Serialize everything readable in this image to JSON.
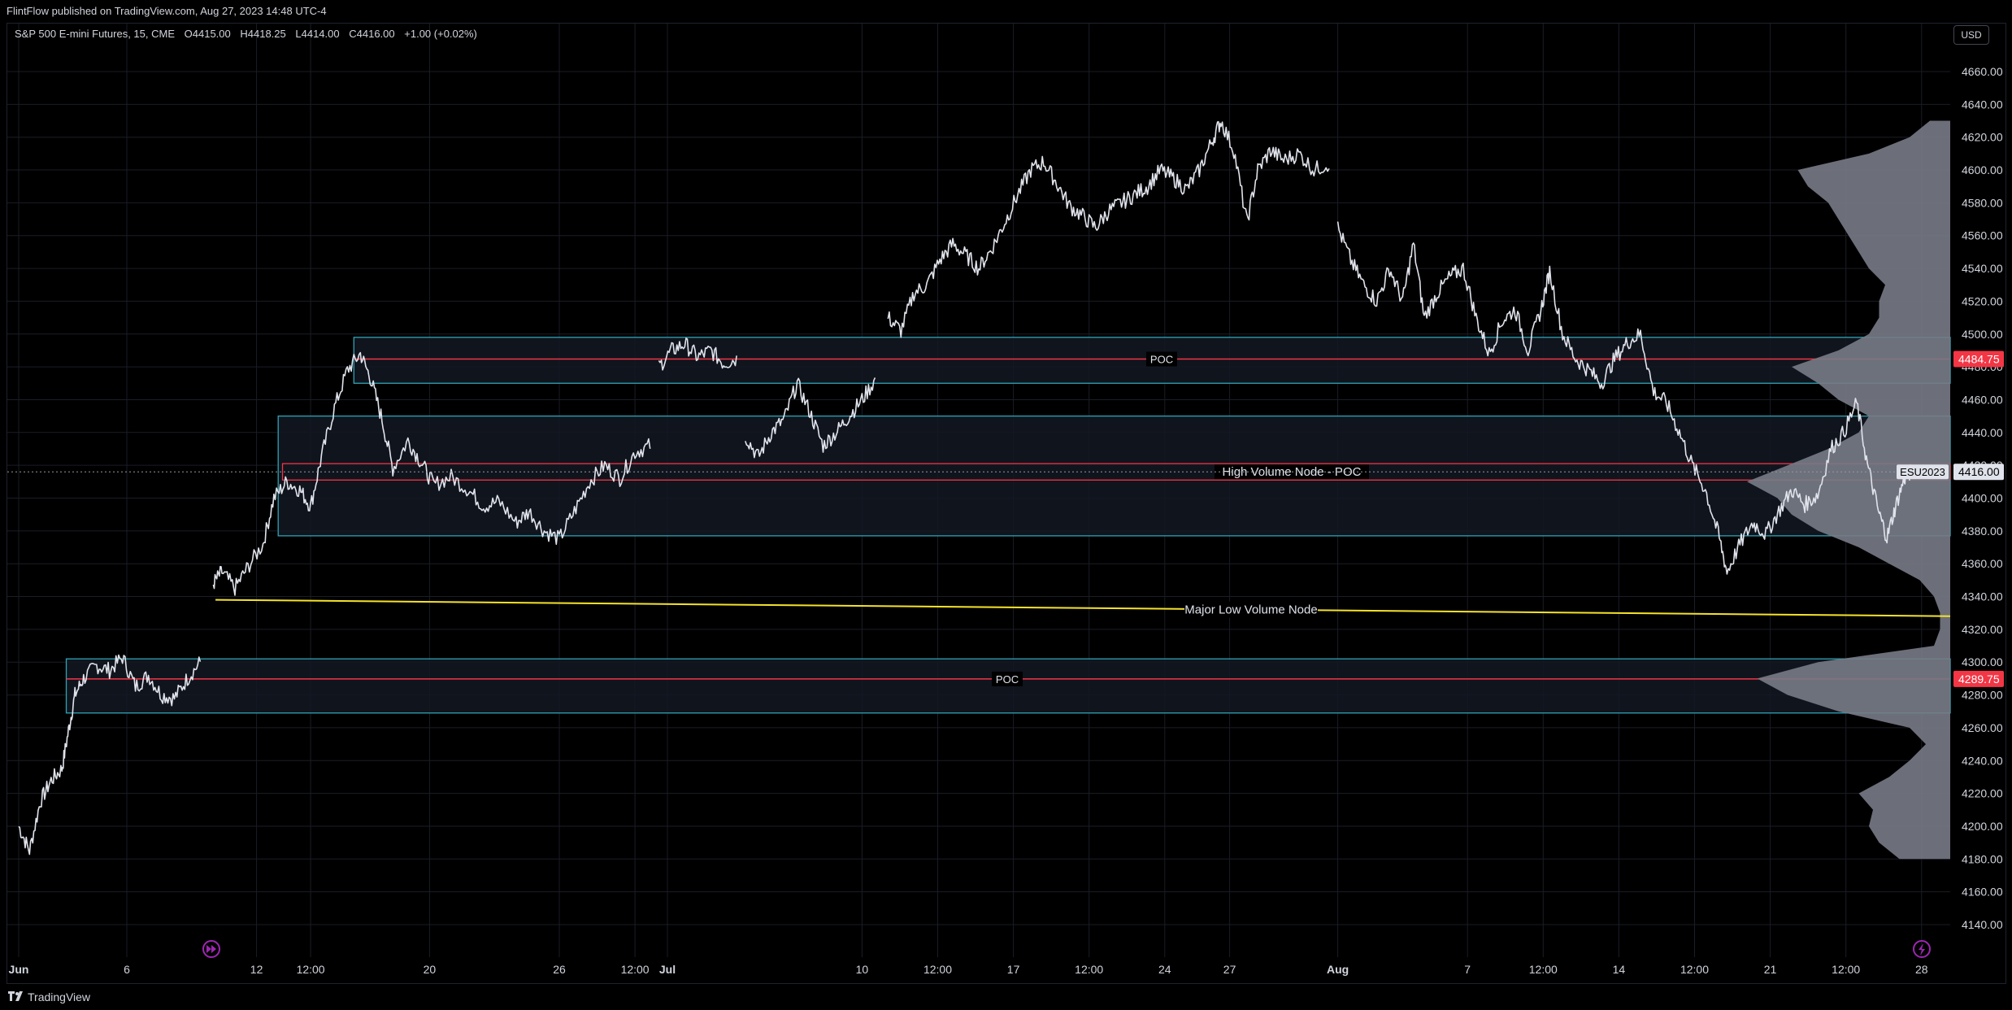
{
  "header": {
    "published_line": "FlintFlow published on TradingView.com, Aug 27, 2023 14:48 UTC-4"
  },
  "legend": {
    "symbol": "S&P 500 E-mini Futures, 15, CME",
    "open": "O4415.00",
    "high": "H4418.25",
    "low": "L4414.00",
    "close": "C4416.00",
    "change": "+1.00 (+0.02%)"
  },
  "currency_button": "USD",
  "footer": {
    "brand": "TradingView"
  },
  "colors": {
    "background": "#000000",
    "candle": "#e0e3eb",
    "zone_border": "#2ea3b5",
    "zone_fill": "#131722",
    "poc_line": "#f23645",
    "lvn_line": "#f5e22a",
    "profile": "#787b86",
    "grid": "#1a1d26",
    "price_badge_red": "#f23645",
    "marker": "#9c27b0"
  },
  "icons": {
    "replay_marker": "fast-forward-circle-icon",
    "lightning_marker": "lightning-circle-icon",
    "logo": "tradingview-logo-icon"
  },
  "chart_data": {
    "type": "line",
    "title": "S&P 500 E-mini Futures, 15, CME",
    "xlabel": "",
    "ylabel": "",
    "ylim": [
      4130,
      4670
    ],
    "y_ticks": [
      4140,
      4160,
      4180,
      4200,
      4220,
      4240,
      4260,
      4280,
      4300,
      4320,
      4340,
      4360,
      4380,
      4400,
      4420,
      4440,
      4460,
      4480,
      4500,
      4520,
      4540,
      4560,
      4580,
      4600,
      4620,
      4640,
      4660
    ],
    "x_ticks": [
      {
        "label": "Jun",
        "day": 0,
        "bold": true
      },
      {
        "label": "6",
        "day": 5
      },
      {
        "label": "12",
        "day": 11
      },
      {
        "label": "12:00",
        "day": 13.5
      },
      {
        "label": "20",
        "day": 19
      },
      {
        "label": "26",
        "day": 25
      },
      {
        "label": "12:00",
        "day": 28.5
      },
      {
        "label": "Jul",
        "day": 30,
        "bold": true
      },
      {
        "label": "10",
        "day": 39
      },
      {
        "label": "12:00",
        "day": 42.5
      },
      {
        "label": "17",
        "day": 46
      },
      {
        "label": "12:00",
        "day": 49.5
      },
      {
        "label": "24",
        "day": 53
      },
      {
        "label": "27",
        "day": 56
      },
      {
        "label": "Aug",
        "day": 61,
        "bold": true
      },
      {
        "label": "7",
        "day": 67
      },
      {
        "label": "12:00",
        "day": 70.5
      },
      {
        "label": "14",
        "day": 74
      },
      {
        "label": "12:00",
        "day": 77.5
      },
      {
        "label": "21",
        "day": 81
      },
      {
        "label": "12:00",
        "day": 84.5
      },
      {
        "label": "28",
        "day": 88
      }
    ],
    "price_series": [
      {
        "day": 0,
        "price": 4200
      },
      {
        "day": 0.5,
        "price": 4185
      },
      {
        "day": 1,
        "price": 4215
      },
      {
        "day": 1.5,
        "price": 4228
      },
      {
        "day": 2,
        "price": 4235
      },
      {
        "day": 2.3,
        "price": 4258
      },
      {
        "day": 2.6,
        "price": 4280
      },
      {
        "day": 3,
        "price": 4290
      },
      {
        "day": 3.6,
        "price": 4298
      },
      {
        "day": 4.2,
        "price": 4295
      },
      {
        "day": 4.8,
        "price": 4303
      },
      {
        "day": 5.4,
        "price": 4285
      },
      {
        "day": 6,
        "price": 4292
      },
      {
        "day": 6.6,
        "price": 4280
      },
      {
        "day": 7.2,
        "price": 4278
      },
      {
        "day": 7.8,
        "price": 4290
      },
      {
        "day": 8.4,
        "price": 4300
      },
      {
        "day": 9,
        "price": 4348
      },
      {
        "day": 9.4,
        "price": 4355
      },
      {
        "day": 10,
        "price": 4345
      },
      {
        "day": 10.6,
        "price": 4358
      },
      {
        "day": 11.3,
        "price": 4372
      },
      {
        "day": 11.8,
        "price": 4400
      },
      {
        "day": 12.4,
        "price": 4410
      },
      {
        "day": 13,
        "price": 4405
      },
      {
        "day": 13.5,
        "price": 4395
      },
      {
        "day": 14,
        "price": 4425
      },
      {
        "day": 14.6,
        "price": 4455
      },
      {
        "day": 15.2,
        "price": 4478
      },
      {
        "day": 15.8,
        "price": 4488
      },
      {
        "day": 16.3,
        "price": 4472
      },
      {
        "day": 16.8,
        "price": 4448
      },
      {
        "day": 17.3,
        "price": 4418
      },
      {
        "day": 18,
        "price": 4435
      },
      {
        "day": 18.6,
        "price": 4422
      },
      {
        "day": 19.2,
        "price": 4408
      },
      {
        "day": 20,
        "price": 4413
      },
      {
        "day": 20.8,
        "price": 4405
      },
      {
        "day": 21.5,
        "price": 4395
      },
      {
        "day": 22.2,
        "price": 4398
      },
      {
        "day": 23,
        "price": 4385
      },
      {
        "day": 23.6,
        "price": 4392
      },
      {
        "day": 24.3,
        "price": 4380
      },
      {
        "day": 25,
        "price": 4375
      },
      {
        "day": 25.7,
        "price": 4392
      },
      {
        "day": 26.4,
        "price": 4410
      },
      {
        "day": 27.1,
        "price": 4420
      },
      {
        "day": 27.8,
        "price": 4412
      },
      {
        "day": 28.5,
        "price": 4428
      },
      {
        "day": 29.2,
        "price": 4432
      },
      {
        "day": 29.6,
        "price": 4480
      },
      {
        "day": 30.2,
        "price": 4490
      },
      {
        "day": 30.8,
        "price": 4494
      },
      {
        "day": 31.4,
        "price": 4486
      },
      {
        "day": 32,
        "price": 4490
      },
      {
        "day": 32.6,
        "price": 4482
      },
      {
        "day": 33.2,
        "price": 4485
      },
      {
        "day": 33.6,
        "price": 4438
      },
      {
        "day": 34.2,
        "price": 4425
      },
      {
        "day": 34.8,
        "price": 4440
      },
      {
        "day": 35.4,
        "price": 4448
      },
      {
        "day": 36,
        "price": 4470
      },
      {
        "day": 36.6,
        "price": 4452
      },
      {
        "day": 37.2,
        "price": 4432
      },
      {
        "day": 37.8,
        "price": 4440
      },
      {
        "day": 38.4,
        "price": 4450
      },
      {
        "day": 39,
        "price": 4460
      },
      {
        "day": 39.6,
        "price": 4472
      },
      {
        "day": 40.2,
        "price": 4510
      },
      {
        "day": 40.8,
        "price": 4502
      },
      {
        "day": 41.4,
        "price": 4525
      },
      {
        "day": 42,
        "price": 4530
      },
      {
        "day": 42.6,
        "price": 4545
      },
      {
        "day": 43.2,
        "price": 4555
      },
      {
        "day": 43.8,
        "price": 4548
      },
      {
        "day": 44.4,
        "price": 4540
      },
      {
        "day": 45,
        "price": 4552
      },
      {
        "day": 45.6,
        "price": 4568
      },
      {
        "day": 46.2,
        "price": 4585
      },
      {
        "day": 46.8,
        "price": 4600
      },
      {
        "day": 47.4,
        "price": 4605
      },
      {
        "day": 48,
        "price": 4592
      },
      {
        "day": 48.6,
        "price": 4578
      },
      {
        "day": 49.2,
        "price": 4572
      },
      {
        "day": 49.8,
        "price": 4565
      },
      {
        "day": 50.4,
        "price": 4575
      },
      {
        "day": 51,
        "price": 4580
      },
      {
        "day": 51.6,
        "price": 4585
      },
      {
        "day": 52.2,
        "price": 4590
      },
      {
        "day": 52.8,
        "price": 4600
      },
      {
        "day": 53.4,
        "price": 4595
      },
      {
        "day": 54,
        "price": 4588
      },
      {
        "day": 54.6,
        "price": 4600
      },
      {
        "day": 55.2,
        "price": 4618
      },
      {
        "day": 55.6,
        "price": 4630
      },
      {
        "day": 56.2,
        "price": 4612
      },
      {
        "day": 56.8,
        "price": 4568
      },
      {
        "day": 57.3,
        "price": 4600
      },
      {
        "day": 57.9,
        "price": 4612
      },
      {
        "day": 58.5,
        "price": 4606
      },
      {
        "day": 59.2,
        "price": 4610
      },
      {
        "day": 59.9,
        "price": 4600
      },
      {
        "day": 60.6,
        "price": 4604
      },
      {
        "day": 61,
        "price": 4565
      },
      {
        "day": 61.6,
        "price": 4545
      },
      {
        "day": 62.2,
        "price": 4530
      },
      {
        "day": 62.8,
        "price": 4520
      },
      {
        "day": 63.4,
        "price": 4540
      },
      {
        "day": 64,
        "price": 4520
      },
      {
        "day": 64.5,
        "price": 4555
      },
      {
        "day": 65,
        "price": 4510
      },
      {
        "day": 65.6,
        "price": 4525
      },
      {
        "day": 66.2,
        "price": 4535
      },
      {
        "day": 66.8,
        "price": 4540
      },
      {
        "day": 67.4,
        "price": 4510
      },
      {
        "day": 68,
        "price": 4488
      },
      {
        "day": 68.6,
        "price": 4508
      },
      {
        "day": 69.2,
        "price": 4515
      },
      {
        "day": 69.8,
        "price": 4490
      },
      {
        "day": 70.4,
        "price": 4515
      },
      {
        "day": 70.8,
        "price": 4538
      },
      {
        "day": 71.4,
        "price": 4500
      },
      {
        "day": 72,
        "price": 4485
      },
      {
        "day": 72.6,
        "price": 4478
      },
      {
        "day": 73.2,
        "price": 4470
      },
      {
        "day": 73.8,
        "price": 4485
      },
      {
        "day": 74.4,
        "price": 4495
      },
      {
        "day": 75,
        "price": 4500
      },
      {
        "day": 75.6,
        "price": 4465
      },
      {
        "day": 76.2,
        "price": 4458
      },
      {
        "day": 76.8,
        "price": 4440
      },
      {
        "day": 77.4,
        "price": 4420
      },
      {
        "day": 78,
        "price": 4405
      },
      {
        "day": 78.6,
        "price": 4378
      },
      {
        "day": 79,
        "price": 4355
      },
      {
        "day": 79.6,
        "price": 4372
      },
      {
        "day": 80.2,
        "price": 4385
      },
      {
        "day": 80.8,
        "price": 4378
      },
      {
        "day": 81.4,
        "price": 4392
      },
      {
        "day": 82,
        "price": 4405
      },
      {
        "day": 82.6,
        "price": 4396
      },
      {
        "day": 83.2,
        "price": 4402
      },
      {
        "day": 83.8,
        "price": 4430
      },
      {
        "day": 84.4,
        "price": 4440
      },
      {
        "day": 85,
        "price": 4458
      },
      {
        "day": 85.5,
        "price": 4420
      },
      {
        "day": 86,
        "price": 4392
      },
      {
        "day": 86.4,
        "price": 4376
      },
      {
        "day": 86.8,
        "price": 4395
      },
      {
        "day": 87.2,
        "price": 4412
      },
      {
        "day": 87.5,
        "price": 4416
      }
    ],
    "zones": [
      {
        "name": "upper-value-area",
        "start_day": 15.5,
        "high": 4498,
        "low": 4470,
        "poc": 4484.75,
        "label": "POC"
      },
      {
        "name": "high-volume-node",
        "start_day": 12.0,
        "high": 4450,
        "low": 4377,
        "poc_high": 4421,
        "poc_low": 4411,
        "label": "High Volume Node - POC"
      },
      {
        "name": "lower-value-area",
        "start_day": 2.2,
        "high": 4302,
        "low": 4269,
        "poc": 4289.75,
        "label": "POC"
      }
    ],
    "low_volume_node": {
      "label": "Major Low Volume Node",
      "start_day": 9.1,
      "start_price": 4338,
      "end_day": 89.5,
      "end_price": 4328
    },
    "price_labels": [
      {
        "value": 4484.75,
        "text": "4484.75",
        "color": "#f23645"
      },
      {
        "value": 4289.75,
        "text": "4289.75",
        "color": "#f23645"
      },
      {
        "value": 4416.0,
        "text": "4416.00",
        "color": "#e0e3eb"
      }
    ],
    "symbol_tag": "ESU2023",
    "volume_profile": [
      {
        "price": 4180,
        "vol": 0.25
      },
      {
        "price": 4190,
        "vol": 0.35
      },
      {
        "price": 4200,
        "vol": 0.4
      },
      {
        "price": 4210,
        "vol": 0.38
      },
      {
        "price": 4220,
        "vol": 0.45
      },
      {
        "price": 4230,
        "vol": 0.3
      },
      {
        "price": 4240,
        "vol": 0.2
      },
      {
        "price": 4250,
        "vol": 0.12
      },
      {
        "price": 4260,
        "vol": 0.2
      },
      {
        "price": 4270,
        "vol": 0.55
      },
      {
        "price": 4280,
        "vol": 0.8
      },
      {
        "price": 4290,
        "vol": 0.95
      },
      {
        "price": 4300,
        "vol": 0.65
      },
      {
        "price": 4310,
        "vol": 0.08
      },
      {
        "price": 4320,
        "vol": 0.05
      },
      {
        "price": 4330,
        "vol": 0.05
      },
      {
        "price": 4340,
        "vol": 0.08
      },
      {
        "price": 4350,
        "vol": 0.15
      },
      {
        "price": 4360,
        "vol": 0.3
      },
      {
        "price": 4370,
        "vol": 0.45
      },
      {
        "price": 4380,
        "vol": 0.65
      },
      {
        "price": 4390,
        "vol": 0.78
      },
      {
        "price": 4400,
        "vol": 0.85
      },
      {
        "price": 4410,
        "vol": 1.0
      },
      {
        "price": 4420,
        "vol": 0.8
      },
      {
        "price": 4430,
        "vol": 0.6
      },
      {
        "price": 4440,
        "vol": 0.45
      },
      {
        "price": 4450,
        "vol": 0.4
      },
      {
        "price": 4460,
        "vol": 0.55
      },
      {
        "price": 4470,
        "vol": 0.65
      },
      {
        "price": 4480,
        "vol": 0.78
      },
      {
        "price": 4490,
        "vol": 0.55
      },
      {
        "price": 4500,
        "vol": 0.4
      },
      {
        "price": 4510,
        "vol": 0.35
      },
      {
        "price": 4520,
        "vol": 0.35
      },
      {
        "price": 4530,
        "vol": 0.32
      },
      {
        "price": 4540,
        "vol": 0.4
      },
      {
        "price": 4550,
        "vol": 0.45
      },
      {
        "price": 4560,
        "vol": 0.5
      },
      {
        "price": 4570,
        "vol": 0.55
      },
      {
        "price": 4580,
        "vol": 0.6
      },
      {
        "price": 4590,
        "vol": 0.7
      },
      {
        "price": 4600,
        "vol": 0.75
      },
      {
        "price": 4610,
        "vol": 0.4
      },
      {
        "price": 4620,
        "vol": 0.2
      },
      {
        "price": 4630,
        "vol": 0.1
      }
    ]
  }
}
